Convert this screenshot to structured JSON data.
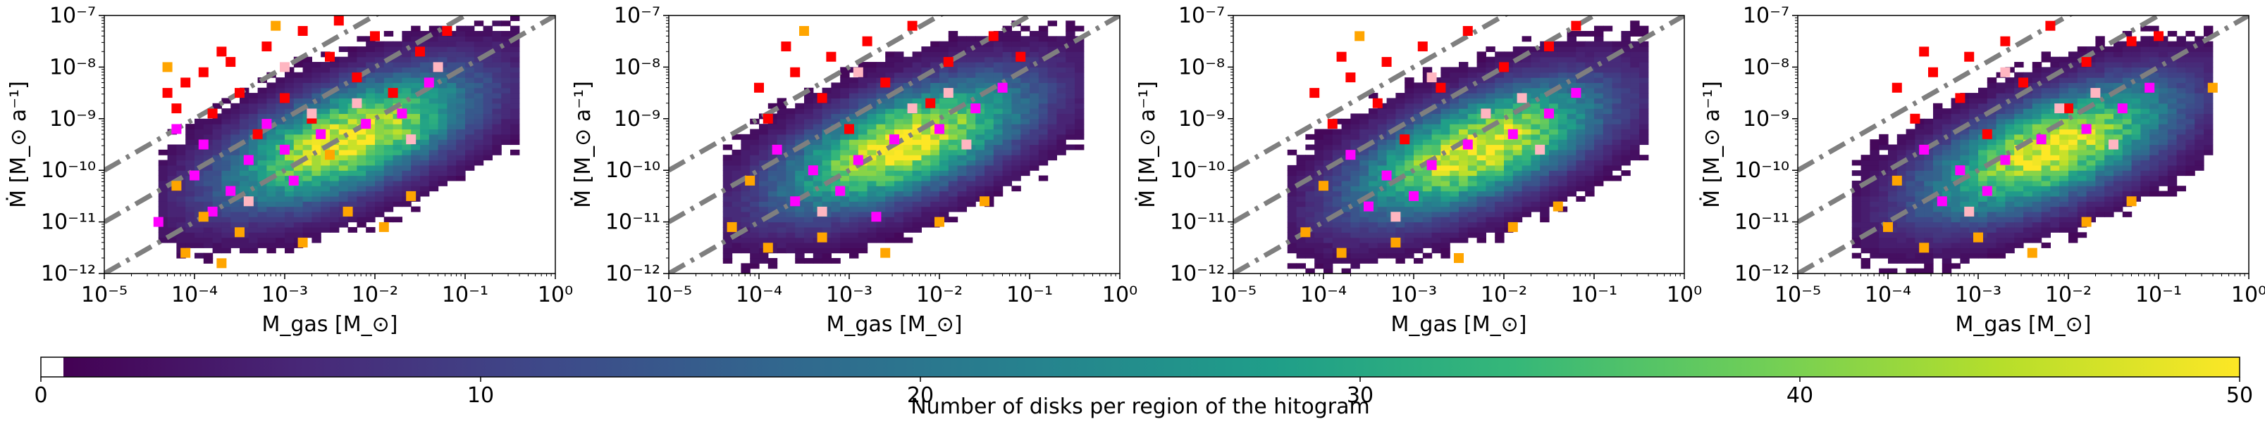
{
  "figure": {
    "colorbar": {
      "label": "Number of disks per region of the hitogram",
      "range": [
        0,
        50
      ],
      "ticks": [
        "0",
        "10",
        "20",
        "30",
        "40",
        "50"
      ],
      "first_bin_color": "#ffffff",
      "colormap": [
        "#440154",
        "#482878",
        "#3e4989",
        "#31688e",
        "#26828e",
        "#1f9e89",
        "#35b779",
        "#6ece58",
        "#b5de2b",
        "#fde725"
      ]
    },
    "colors": {
      "reference_lines": "#7f7f7f",
      "series": {
        "red": "#ff0000",
        "magenta": "#ff00ff",
        "orange": "#ffa500",
        "pink": "#ffb6c1"
      }
    }
  },
  "chart_data": [
    {
      "type": "heatmap",
      "panel": 1,
      "xlabel": "M_gas [M_⊙]",
      "ylabel": "Ṁ [M_⊙ a⁻¹]",
      "xscale": "log",
      "yscale": "log",
      "xlim": [
        1e-05,
        1
      ],
      "ylim": [
        1e-12,
        1e-07
      ],
      "xticks": [
        "10⁻⁵",
        "10⁻⁴",
        "10⁻³",
        "10⁻²",
        "10⁻¹",
        "10⁰"
      ],
      "yticks": [
        "10⁻¹²",
        "10⁻¹¹",
        "10⁻¹⁰",
        "10⁻⁹",
        "10⁻⁸",
        "10⁻⁷"
      ],
      "histogram": {
        "center_log_mass": -2.3,
        "center_log_rate": -9.4,
        "peak_count": 50
      },
      "reference_lines": [
        {
          "style": "dash-dot",
          "log_rate_at_log_mass_minus5": -10.0,
          "slope": 1
        },
        {
          "style": "dash-dot",
          "log_rate_at_log_mass_minus5": -11.0,
          "slope": 1
        },
        {
          "style": "dash-dot",
          "log_rate_at_log_mass_minus5": -12.0,
          "slope": 1
        }
      ],
      "series": [
        {
          "color": "#ff0000",
          "points": [
            [
              -4.1,
              -8.3
            ],
            [
              -3.9,
              -8.1
            ],
            [
              -3.6,
              -7.9
            ],
            [
              -3.2,
              -7.6
            ],
            [
              -2.8,
              -7.3
            ],
            [
              -4.2,
              -8.8
            ],
            [
              -3.5,
              -8.5
            ],
            [
              -2.5,
              -7.8
            ],
            [
              -2.0,
              -7.4
            ],
            [
              -3.0,
              -8.6
            ],
            [
              -2.2,
              -8.2
            ],
            [
              -1.5,
              -7.7
            ],
            [
              -3.8,
              -8.9
            ],
            [
              -4.3,
              -8.5
            ],
            [
              -2.7,
              -9.0
            ],
            [
              -1.8,
              -8.5
            ],
            [
              -3.3,
              -9.3
            ],
            [
              -2.4,
              -7.1
            ],
            [
              -1.2,
              -7.3
            ],
            [
              -3.7,
              -7.7
            ]
          ]
        },
        {
          "color": "#ff00ff",
          "points": [
            [
              -3.9,
              -9.5
            ],
            [
              -3.4,
              -9.8
            ],
            [
              -3.0,
              -9.6
            ],
            [
              -2.6,
              -9.3
            ],
            [
              -4.0,
              -10.1
            ],
            [
              -3.6,
              -10.4
            ],
            [
              -2.1,
              -9.1
            ],
            [
              -1.7,
              -8.9
            ],
            [
              -4.2,
              -9.2
            ],
            [
              -3.2,
              -9.1
            ],
            [
              -4.4,
              -11.0
            ],
            [
              -2.9,
              -10.2
            ],
            [
              -1.4,
              -8.3
            ],
            [
              -3.8,
              -10.8
            ]
          ]
        },
        {
          "color": "#ffa500",
          "points": [
            [
              -4.2,
              -10.3
            ],
            [
              -3.9,
              -10.9
            ],
            [
              -3.5,
              -11.2
            ],
            [
              -2.8,
              -11.4
            ],
            [
              -4.1,
              -11.6
            ],
            [
              -2.3,
              -10.8
            ],
            [
              -1.9,
              -11.1
            ],
            [
              -3.1,
              -7.2
            ],
            [
              -4.3,
              -8.0
            ],
            [
              -1.6,
              -10.5
            ],
            [
              -3.7,
              -11.8
            ],
            [
              -2.5,
              -9.7
            ]
          ]
        },
        {
          "color": "#ffb6c1",
          "points": [
            [
              -3.0,
              -8.0
            ],
            [
              -2.2,
              -8.7
            ],
            [
              -1.6,
              -9.4
            ],
            [
              -3.4,
              -10.6
            ],
            [
              -2.7,
              -8.9
            ],
            [
              -1.3,
              -8.0
            ]
          ]
        }
      ]
    },
    {
      "type": "heatmap",
      "panel": 2,
      "xlabel": "M_gas [M_⊙]",
      "ylabel": "Ṁ [M_⊙ a⁻¹]",
      "xscale": "log",
      "yscale": "log",
      "xlim": [
        1e-05,
        1
      ],
      "ylim": [
        1e-12,
        1e-07
      ],
      "xticks": [
        "10⁻⁵",
        "10⁻⁴",
        "10⁻³",
        "10⁻²",
        "10⁻¹",
        "10⁰"
      ],
      "yticks": [
        "10⁻¹²",
        "10⁻¹¹",
        "10⁻¹⁰",
        "10⁻⁹",
        "10⁻⁸",
        "10⁻⁷"
      ],
      "histogram": {
        "center_log_mass": -2.4,
        "center_log_rate": -9.5,
        "peak_count": 50
      },
      "reference_lines": [
        {
          "style": "dash-dot",
          "log_rate_at_log_mass_minus5": -10.0,
          "slope": 1
        },
        {
          "style": "dash-dot",
          "log_rate_at_log_mass_minus5": -11.0,
          "slope": 1
        },
        {
          "style": "dash-dot",
          "log_rate_at_log_mass_minus5": -12.0,
          "slope": 1
        }
      ],
      "series": [
        {
          "color": "#ff0000",
          "points": [
            [
              -4.0,
              -8.4
            ],
            [
              -3.6,
              -8.1
            ],
            [
              -3.2,
              -7.8
            ],
            [
              -2.8,
              -7.5
            ],
            [
              -2.3,
              -7.2
            ],
            [
              -3.9,
              -9.0
            ],
            [
              -3.3,
              -8.6
            ],
            [
              -2.6,
              -8.3
            ],
            [
              -1.9,
              -7.9
            ],
            [
              -1.4,
              -7.4
            ],
            [
              -3.0,
              -9.2
            ],
            [
              -2.1,
              -8.7
            ],
            [
              -3.7,
              -7.6
            ],
            [
              -1.1,
              -7.8
            ]
          ]
        },
        {
          "color": "#ff00ff",
          "points": [
            [
              -3.8,
              -9.6
            ],
            [
              -3.4,
              -10.0
            ],
            [
              -2.9,
              -9.8
            ],
            [
              -2.5,
              -9.4
            ],
            [
              -3.6,
              -10.6
            ],
            [
              -2.0,
              -9.2
            ],
            [
              -1.6,
              -8.8
            ],
            [
              -3.1,
              -10.4
            ],
            [
              -1.3,
              -8.4
            ],
            [
              -2.7,
              -10.9
            ]
          ]
        },
        {
          "color": "#ffa500",
          "points": [
            [
              -4.3,
              -11.1
            ],
            [
              -3.9,
              -11.5
            ],
            [
              -3.3,
              -11.3
            ],
            [
              -2.6,
              -11.6
            ],
            [
              -2.0,
              -11.0
            ],
            [
              -1.5,
              -10.6
            ],
            [
              -3.5,
              -7.3
            ],
            [
              -4.1,
              -10.2
            ]
          ]
        },
        {
          "color": "#ffb6c1",
          "points": [
            [
              -2.9,
              -8.1
            ],
            [
              -2.3,
              -8.8
            ],
            [
              -1.7,
              -9.5
            ],
            [
              -3.3,
              -10.8
            ],
            [
              -1.9,
              -8.5
            ]
          ]
        }
      ]
    },
    {
      "type": "heatmap",
      "panel": 3,
      "xlabel": "M_gas [M_⊙]",
      "ylabel": "Ṁ [M_⊙ a⁻¹]",
      "xscale": "log",
      "yscale": "log",
      "xlim": [
        1e-05,
        1
      ],
      "ylim": [
        1e-12,
        1e-07
      ],
      "xticks": [
        "10⁻⁵",
        "10⁻⁴",
        "10⁻³",
        "10⁻²",
        "10⁻¹",
        "10⁰"
      ],
      "yticks": [
        "10⁻¹²",
        "10⁻¹¹",
        "10⁻¹⁰",
        "10⁻⁹",
        "10⁻⁸",
        "10⁻⁷"
      ],
      "histogram": {
        "center_log_mass": -2.3,
        "center_log_rate": -9.6,
        "peak_count": 50
      },
      "reference_lines": [
        {
          "style": "dash-dot",
          "log_rate_at_log_mass_minus5": -10.0,
          "slope": 1
        },
        {
          "style": "dash-dot",
          "log_rate_at_log_mass_minus5": -11.0,
          "slope": 1
        },
        {
          "style": "dash-dot",
          "log_rate_at_log_mass_minus5": -12.0,
          "slope": 1
        }
      ],
      "series": [
        {
          "color": "#ff0000",
          "points": [
            [
              -4.1,
              -8.5
            ],
            [
              -3.7,
              -8.2
            ],
            [
              -3.3,
              -7.9
            ],
            [
              -2.9,
              -7.6
            ],
            [
              -2.4,
              -7.3
            ],
            [
              -3.9,
              -9.1
            ],
            [
              -3.4,
              -8.7
            ],
            [
              -2.7,
              -8.4
            ],
            [
              -2.0,
              -8.0
            ],
            [
              -1.5,
              -7.6
            ],
            [
              -3.1,
              -9.4
            ],
            [
              -2.2,
              -8.9
            ],
            [
              -1.2,
              -7.2
            ],
            [
              -3.8,
              -7.8
            ]
          ]
        },
        {
          "color": "#ff00ff",
          "points": [
            [
              -3.7,
              -9.7
            ],
            [
              -3.3,
              -10.1
            ],
            [
              -2.8,
              -9.9
            ],
            [
              -2.4,
              -9.5
            ],
            [
              -3.5,
              -10.7
            ],
            [
              -1.9,
              -9.3
            ],
            [
              -1.5,
              -8.9
            ],
            [
              -3.0,
              -10.5
            ],
            [
              -1.2,
              -8.5
            ]
          ]
        },
        {
          "color": "#ffa500",
          "points": [
            [
              -4.2,
              -11.2
            ],
            [
              -3.8,
              -11.6
            ],
            [
              -3.2,
              -11.4
            ],
            [
              -2.5,
              -11.7
            ],
            [
              -1.9,
              -11.1
            ],
            [
              -1.4,
              -10.7
            ],
            [
              -3.6,
              -7.4
            ],
            [
              -4.0,
              -10.3
            ]
          ]
        },
        {
          "color": "#ffb6c1",
          "points": [
            [
              -2.8,
              -8.2
            ],
            [
              -2.2,
              -8.9
            ],
            [
              -1.6,
              -9.6
            ],
            [
              -3.2,
              -10.9
            ],
            [
              -1.8,
              -8.6
            ]
          ]
        }
      ]
    },
    {
      "type": "heatmap",
      "panel": 4,
      "xlabel": "M_gas [M_⊙]",
      "ylabel": "Ṁ [M_⊙ a⁻¹]",
      "xscale": "log",
      "yscale": "log",
      "xlim": [
        1e-05,
        1
      ],
      "ylim": [
        1e-12,
        1e-07
      ],
      "xticks": [
        "10⁻⁵",
        "10⁻⁴",
        "10⁻³",
        "10⁻²",
        "10⁻¹",
        "10⁰"
      ],
      "yticks": [
        "10⁻¹²",
        "10⁻¹¹",
        "10⁻¹⁰",
        "10⁻⁹",
        "10⁻⁸",
        "10⁻⁷"
      ],
      "histogram": {
        "center_log_mass": -2.2,
        "center_log_rate": -9.6,
        "peak_count": 50
      },
      "reference_lines": [
        {
          "style": "dash-dot",
          "log_rate_at_log_mass_minus5": -10.0,
          "slope": 1
        },
        {
          "style": "dash-dot",
          "log_rate_at_log_mass_minus5": -11.0,
          "slope": 1
        },
        {
          "style": "dash-dot",
          "log_rate_at_log_mass_minus5": -12.0,
          "slope": 1
        }
      ],
      "series": [
        {
          "color": "#ff0000",
          "points": [
            [
              -3.9,
              -8.4
            ],
            [
              -3.5,
              -8.1
            ],
            [
              -3.1,
              -7.8
            ],
            [
              -2.7,
              -7.5
            ],
            [
              -2.2,
              -7.2
            ],
            [
              -3.7,
              -9.0
            ],
            [
              -3.2,
              -8.6
            ],
            [
              -2.5,
              -8.3
            ],
            [
              -1.8,
              -7.9
            ],
            [
              -1.3,
              -7.5
            ],
            [
              -2.9,
              -9.3
            ],
            [
              -2.0,
              -8.8
            ],
            [
              -1.0,
              -7.4
            ],
            [
              -3.6,
              -7.7
            ]
          ]
        },
        {
          "color": "#ff00ff",
          "points": [
            [
              -3.6,
              -9.6
            ],
            [
              -3.2,
              -10.0
            ],
            [
              -2.7,
              -9.8
            ],
            [
              -2.3,
              -9.4
            ],
            [
              -3.4,
              -10.6
            ],
            [
              -1.8,
              -9.2
            ],
            [
              -1.4,
              -8.8
            ],
            [
              -2.9,
              -10.4
            ],
            [
              -1.1,
              -8.4
            ]
          ]
        },
        {
          "color": "#ffa500",
          "points": [
            [
              -4.0,
              -11.1
            ],
            [
              -3.6,
              -11.5
            ],
            [
              -3.0,
              -11.3
            ],
            [
              -2.4,
              -11.6
            ],
            [
              -1.8,
              -11.0
            ],
            [
              -1.3,
              -10.6
            ],
            [
              -0.4,
              -8.4
            ],
            [
              -3.9,
              -10.2
            ]
          ]
        },
        {
          "color": "#ffb6c1",
          "points": [
            [
              -2.7,
              -8.1
            ],
            [
              -2.1,
              -8.8
            ],
            [
              -1.5,
              -9.5
            ],
            [
              -3.1,
              -10.8
            ],
            [
              -1.7,
              -8.5
            ]
          ]
        }
      ]
    }
  ]
}
